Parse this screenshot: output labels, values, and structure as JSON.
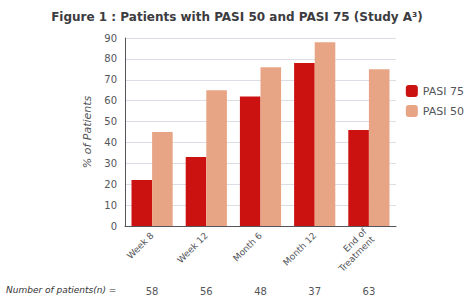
{
  "chart_data": {
    "type": "bar",
    "title": "Figure 1 : Patients with PASI 50 and PASI 75 (Study A³)",
    "categories": [
      "Week 8",
      "Week 12",
      "Month 6",
      "Month 12",
      "End of\nTreatment"
    ],
    "series": [
      {
        "name": "PASI 75",
        "color": "#cc1111",
        "values": [
          22,
          33,
          62,
          78,
          46
        ]
      },
      {
        "name": "PASI 50",
        "color": "#e8a585",
        "values": [
          45,
          65,
          76,
          88,
          75
        ]
      }
    ],
    "ylabel": "% of Patients",
    "ylim": [
      0,
      90
    ],
    "yticks": [
      0,
      10,
      20,
      30,
      40,
      50,
      60,
      70,
      80,
      90
    ],
    "grid": true,
    "legend": "right",
    "n_label": "Number of patients(n) =",
    "n_values": [
      58,
      56,
      48,
      37,
      63
    ]
  }
}
